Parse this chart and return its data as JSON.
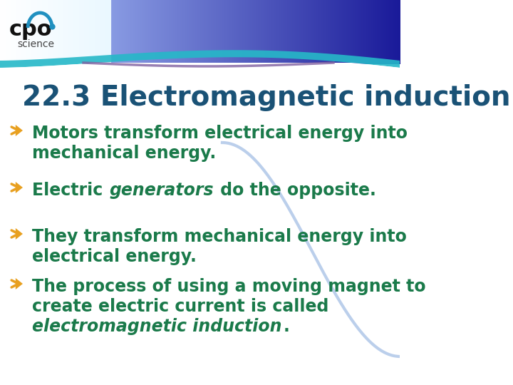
{
  "title": "22.3 Electromagnetic induction",
  "title_color": "#1a5276",
  "title_fontsize": 28,
  "title_bold": true,
  "bullet_color_arrow": "#e8a020",
  "bullet_color_text": "#1a7a4a",
  "bullet_fontsize": 17,
  "bullets": [
    {
      "lines": [
        {
          "text": "Motors transform electrical energy into",
          "parts": [
            {
              "t": "Motors transform electrical energy into",
              "italic": false
            }
          ]
        },
        {
          "text": "mechanical energy.",
          "parts": [
            {
              "t": "mechanical energy.",
              "italic": false
            }
          ]
        }
      ]
    },
    {
      "lines": [
        {
          "text": "Electric generators do the opposite.",
          "parts": [
            {
              "t": "Electric ",
              "italic": false
            },
            {
              "t": "generators",
              "italic": true
            },
            {
              "t": " do the opposite.",
              "italic": false
            }
          ]
        }
      ]
    },
    {
      "lines": [
        {
          "text": "They transform mechanical energy into",
          "parts": [
            {
              "t": "They transform mechanical energy into",
              "italic": false
            }
          ]
        },
        {
          "text": "electrical energy.",
          "parts": [
            {
              "t": "electrical energy.",
              "italic": false
            }
          ]
        }
      ]
    },
    {
      "lines": [
        {
          "text": "The process of using a moving magnet to",
          "parts": [
            {
              "t": "The process of using a moving magnet to",
              "italic": false
            }
          ]
        },
        {
          "text": "create electric current is called",
          "parts": [
            {
              "t": "create electric current is called",
              "italic": false
            }
          ]
        },
        {
          "text": "electromagnetic induction.",
          "parts": [
            {
              "t": "electromagnetic induction",
              "italic": true
            },
            {
              "t": ".",
              "italic": false
            }
          ]
        }
      ]
    }
  ],
  "bg_color": "#ffffff",
  "header_bg": "#1a9bbf",
  "header_dark_bg": "#1a3a6e",
  "curve_color": "#2980b9",
  "purple_line_color": "#9b59b6",
  "logo_text_cpo": "#000000",
  "logo_text_science": "#555555"
}
